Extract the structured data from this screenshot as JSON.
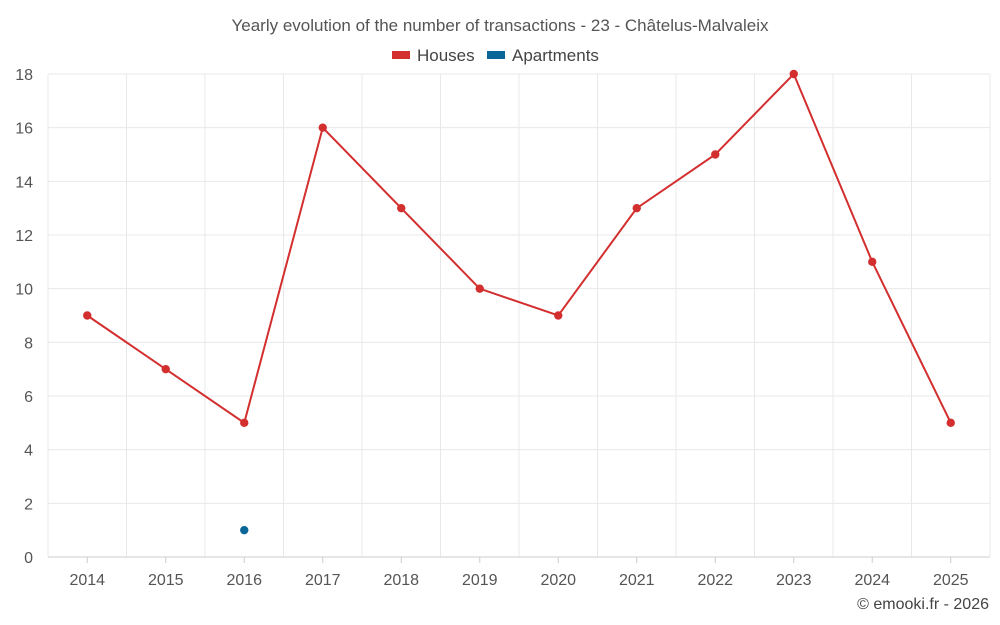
{
  "chart_data": {
    "type": "line",
    "title": "Yearly evolution of the number of transactions - 23 - Châtelus-Malvaleix",
    "x": [
      "2014",
      "2015",
      "2016",
      "2017",
      "2018",
      "2019",
      "2020",
      "2021",
      "2022",
      "2023",
      "2024",
      "2025"
    ],
    "yticks": [
      "0",
      "2",
      "4",
      "6",
      "8",
      "10",
      "12",
      "14",
      "16",
      "18"
    ],
    "ylim": [
      0,
      18
    ],
    "grid": true,
    "legend_position": "top-center",
    "series": [
      {
        "name": "Houses",
        "color": "#d32f2f",
        "values": [
          9,
          7,
          5,
          16,
          13,
          10,
          9,
          13,
          15,
          18,
          11,
          5
        ]
      },
      {
        "name": "Apartments",
        "color": "#0a6696",
        "values": [
          null,
          null,
          1,
          null,
          null,
          null,
          null,
          null,
          null,
          null,
          null,
          null
        ]
      }
    ],
    "credit": "© emooki.fr - 2026"
  }
}
